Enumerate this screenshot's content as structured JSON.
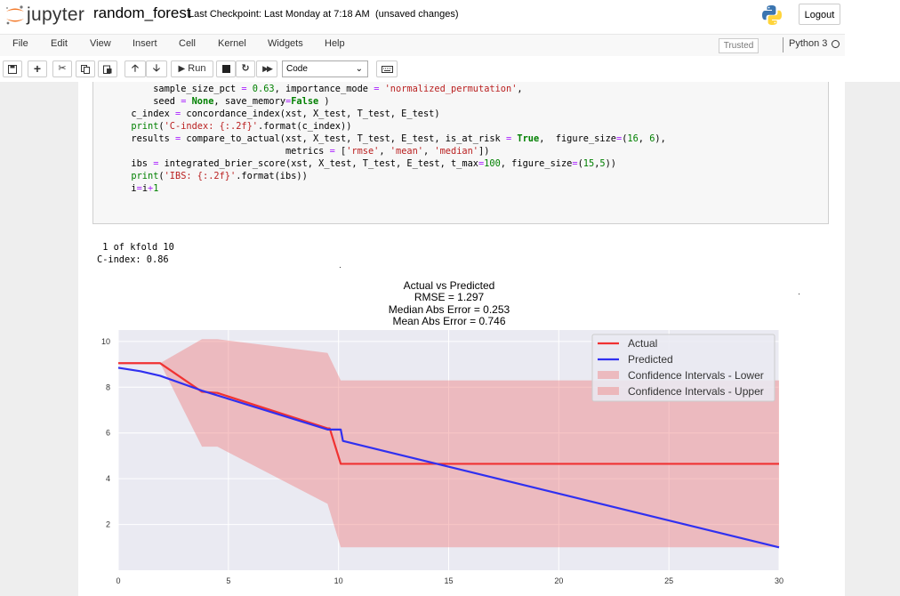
{
  "header": {
    "logo_text": "jupyter",
    "notebook_name": "random_forest",
    "checkpoint": "Last Checkpoint: Last Monday at 7:18 AM",
    "unsaved": "(unsaved changes)",
    "logout_label": "Logout"
  },
  "menubar": {
    "items": [
      "File",
      "Edit",
      "View",
      "Insert",
      "Cell",
      "Kernel",
      "Widgets",
      "Help"
    ],
    "trusted": "Trusted",
    "kernel": "Python 3"
  },
  "toolbar": {
    "run_label": "Run",
    "cell_type": "Code",
    "icons": [
      "save-icon",
      "add-cell-icon",
      "cut-icon",
      "copy-icon",
      "paste-icon",
      "move-up-icon",
      "move-down-icon",
      "run-icon",
      "stop-icon",
      "restart-icon",
      "fast-forward-icon",
      "keyboard-icon"
    ]
  },
  "code_cell": {
    "lines": [
      "      sample_size_pct = 0.63, importance_mode = 'normalized_permutation',",
      "      seed = None, save_memory=False )",
      "  c_index = concordance_index(xst, X_test, T_test, E_test)",
      "  print('C-index: {:.2f}'.format(c_index))",
      "  results = compare_to_actual(xst, X_test, T_test, E_test, is_at_risk = True,  figure_size=(16, 6),",
      "                              metrics = ['rmse', 'mean', 'median'])",
      "  ibs = integrated_brier_score(xst, X_test, T_test, E_test, t_max=100, figure_size=(15,5))",
      "  print('IBS: {:.2f}'.format(ibs))",
      "  i=i+1"
    ]
  },
  "output": {
    "lines": [
      " 1 of kfold 10",
      "C-index: 0.86"
    ]
  },
  "chart_data": {
    "type": "line",
    "title_lines": [
      "Actual vs Predicted",
      "RMSE = 1.297",
      "Median Abs Error = 0.253",
      "Mean Abs Error = 0.746"
    ],
    "xlim": [
      0,
      30
    ],
    "ylim": [
      0,
      10.5
    ],
    "xticks": [
      0,
      5,
      10,
      15,
      20,
      25,
      30
    ],
    "yticks": [
      2,
      4,
      6,
      8,
      10
    ],
    "grid": true,
    "legend_position": "top-right",
    "series": [
      {
        "name": "Actual",
        "color": "#f03232",
        "x": [
          0,
          1.9,
          3.8,
          4.5,
          9.5,
          9.6,
          10.1,
          30
        ],
        "y": [
          9.05,
          9.05,
          7.8,
          7.75,
          6.2,
          6.2,
          4.65,
          4.65
        ]
      },
      {
        "name": "Predicted",
        "color": "#3030f0",
        "x": [
          0,
          1,
          1.9,
          3.8,
          9.5,
          10.1,
          10.2,
          30
        ],
        "y": [
          8.85,
          8.7,
          8.5,
          7.85,
          6.15,
          6.15,
          5.65,
          1.0
        ]
      }
    ],
    "bands": [
      {
        "name": "Confidence Intervals - Lower",
        "color": "#f08080",
        "x": [
          0,
          1.9,
          3.8,
          4.5,
          9.5,
          10.1,
          30
        ],
        "y": [
          9.05,
          9.05,
          5.4,
          5.4,
          2.9,
          1.0,
          1.0
        ]
      },
      {
        "name": "Confidence Intervals - Upper",
        "color": "#f08080",
        "x": [
          0,
          1.9,
          3.8,
          4.5,
          9.5,
          10.1,
          30
        ],
        "y": [
          9.05,
          9.05,
          10.1,
          10.1,
          9.5,
          8.3,
          8.3
        ]
      }
    ],
    "legend": [
      "Actual",
      "Predicted",
      "Confidence Intervals - Lower",
      "Confidence Intervals - Upper"
    ]
  }
}
